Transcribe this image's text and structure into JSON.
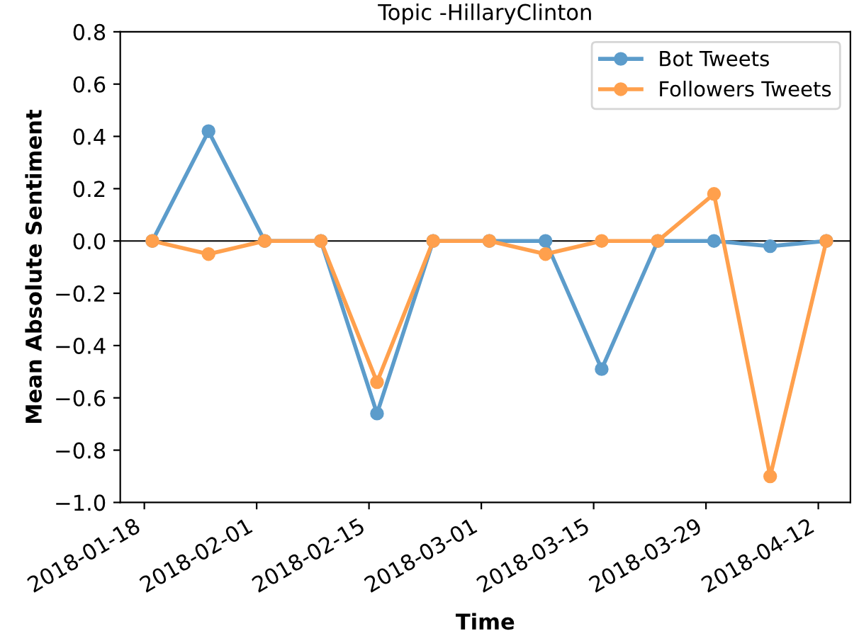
{
  "chart_data": {
    "type": "line",
    "title": "Topic -HillaryClinton",
    "xlabel": "Time",
    "ylabel": "Mean Absolute Sentiment",
    "x": [
      "2018-01-19",
      "2018-01-26",
      "2018-02-02",
      "2018-02-09",
      "2018-02-16",
      "2018-02-23",
      "2018-03-02",
      "2018-03-09",
      "2018-03-16",
      "2018-03-23",
      "2018-03-30",
      "2018-04-06",
      "2018-04-13"
    ],
    "series": [
      {
        "name": "Bot Tweets",
        "color": "#5c9ccb",
        "values": [
          0,
          0.42,
          0,
          0,
          -0.66,
          0,
          0,
          0,
          -0.49,
          0,
          0,
          -0.02,
          0
        ]
      },
      {
        "name": "Followers Tweets",
        "color": "#ffa04d",
        "values": [
          0,
          -0.05,
          0,
          0,
          -0.54,
          0,
          0,
          -0.05,
          0,
          0,
          0.18,
          -0.9,
          0
        ]
      }
    ],
    "xlim": [
      "2018-01-15",
      "2018-04-16"
    ],
    "xticks": [
      "2018-01-18",
      "2018-02-01",
      "2018-02-15",
      "2018-03-01",
      "2018-03-15",
      "2018-03-29",
      "2018-04-12"
    ],
    "ylim": [
      -1.0,
      0.8
    ],
    "yticks": [
      {
        "value": -1.0,
        "label": "−1.0"
      },
      {
        "value": -0.8,
        "label": "−0.8"
      },
      {
        "value": -0.6,
        "label": "−0.6"
      },
      {
        "value": -0.4,
        "label": "−0.4"
      },
      {
        "value": -0.2,
        "label": "−0.2"
      },
      {
        "value": 0,
        "label": "0.0"
      },
      {
        "value": 0.2,
        "label": "0.2"
      },
      {
        "value": 0.4,
        "label": "0.4"
      },
      {
        "value": 0.6,
        "label": "0.6"
      },
      {
        "value": 0.8,
        "label": "0.8"
      }
    ],
    "ref_lines": [
      {
        "axis": "y",
        "value": 0,
        "color": "#000000"
      }
    ],
    "legend": "top right",
    "marker": "circle",
    "line_style": "solid",
    "grid": false
  }
}
